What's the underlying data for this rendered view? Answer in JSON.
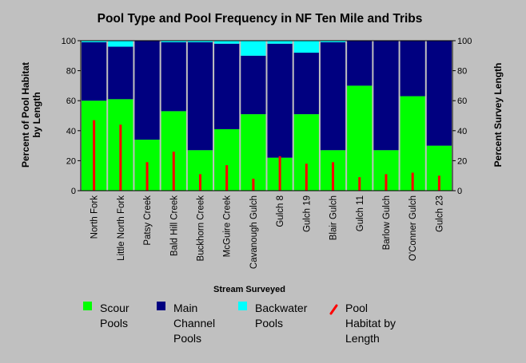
{
  "chart_data": {
    "type": "bar",
    "title": "Pool Type and Pool Frequency in NF Ten Mile and Tribs",
    "xlabel": "Stream Surveyed",
    "ylabel_left": [
      "Percent of Pool Habitat",
      "by Length"
    ],
    "ylabel_right": "Percent Survey Length",
    "ylim": [
      0,
      100
    ],
    "yticks": [
      "0",
      "20",
      "40",
      "60",
      "80",
      "100"
    ],
    "categories": [
      "North Fork",
      "Little North Fork",
      "Patsy Creek",
      "Bald Hill Creek",
      "Buckhorn Creek",
      "McGuire Creek",
      "Cavanough Gulch",
      "Gulch 8",
      "Gulch 19",
      "Blair Gulch",
      "Gulch 11",
      "Barlow Gulch",
      "O'Conner Gulch",
      "Gulch 23"
    ],
    "series": [
      {
        "name": "Scour Pools",
        "color": "#00ff00",
        "values": [
          60,
          61,
          34,
          53,
          27,
          41,
          51,
          22,
          51,
          27,
          70,
          27,
          63,
          30
        ]
      },
      {
        "name": "Main Channel Pools",
        "color": "#000080",
        "values": [
          39,
          35,
          66,
          46,
          72,
          57,
          39,
          76,
          41,
          72,
          30,
          73,
          37,
          70
        ]
      },
      {
        "name": "Backwater Pools",
        "color": "#00ffff",
        "values": [
          1,
          4,
          0,
          1,
          1,
          2,
          10,
          2,
          8,
          1,
          0,
          0,
          0,
          0
        ]
      },
      {
        "name": "Pool Habitat by Length",
        "color": "#ff0000",
        "values": [
          47,
          44,
          19,
          26,
          11,
          17,
          8,
          23,
          18,
          19,
          9,
          11,
          12,
          10
        ]
      }
    ],
    "legend": [
      {
        "lines": [
          "Scour",
          "Pools"
        ],
        "icon": "green-square-icon",
        "color": "#00ff00"
      },
      {
        "lines": [
          "Main",
          "Channel",
          "Pools"
        ],
        "icon": "navy-square-icon",
        "color": "#000080"
      },
      {
        "lines": [
          "Backwater",
          "Pools"
        ],
        "icon": "cyan-square-icon",
        "color": "#00ffff"
      },
      {
        "lines": [
          "Pool",
          "Habitat by",
          "Length"
        ],
        "icon": "red-line-icon",
        "color": "#ff0000"
      }
    ],
    "legend_position": "bottom",
    "grid": false
  }
}
